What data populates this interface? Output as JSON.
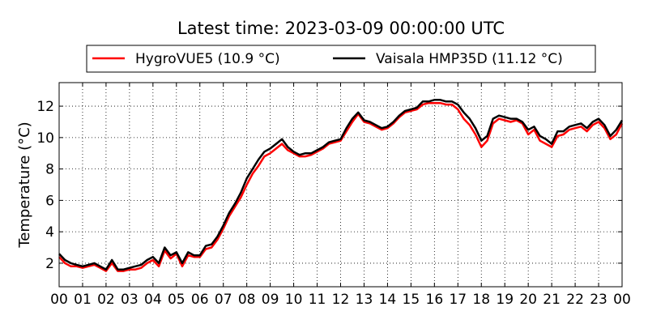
{
  "chart_data": {
    "type": "line",
    "title": "Latest time: 2023-03-09 00:00:00 UTC",
    "xlabel": "",
    "ylabel": "Temperature (°C)",
    "xlim": [
      0,
      24
    ],
    "ylim": [
      0.5,
      13.5
    ],
    "yticks": [
      2,
      4,
      6,
      8,
      10,
      12
    ],
    "xtick_labels": [
      "00",
      "01",
      "02",
      "03",
      "04",
      "05",
      "06",
      "07",
      "08",
      "09",
      "10",
      "11",
      "12",
      "13",
      "14",
      "15",
      "16",
      "17",
      "18",
      "19",
      "20",
      "21",
      "22",
      "23",
      "00"
    ],
    "grid": true,
    "legend": {
      "placement": "top-center, above plot",
      "columns": 2
    },
    "series": [
      {
        "name": "HygroVUE5 (10.9 °C)",
        "color": "#ff0000",
        "points": [
          [
            0.0,
            2.4
          ],
          [
            0.25,
            2.0
          ],
          [
            0.5,
            1.8
          ],
          [
            0.75,
            1.8
          ],
          [
            1.0,
            1.7
          ],
          [
            1.25,
            1.8
          ],
          [
            1.5,
            1.9
          ],
          [
            1.75,
            1.7
          ],
          [
            2.0,
            1.5
          ],
          [
            2.25,
            2.0
          ],
          [
            2.5,
            1.5
          ],
          [
            2.75,
            1.5
          ],
          [
            3.0,
            1.6
          ],
          [
            3.25,
            1.6
          ],
          [
            3.5,
            1.7
          ],
          [
            3.75,
            2.0
          ],
          [
            4.0,
            2.2
          ],
          [
            4.25,
            1.8
          ],
          [
            4.5,
            2.8
          ],
          [
            4.75,
            2.3
          ],
          [
            5.0,
            2.6
          ],
          [
            5.25,
            1.8
          ],
          [
            5.5,
            2.5
          ],
          [
            5.75,
            2.4
          ],
          [
            6.0,
            2.4
          ],
          [
            6.25,
            2.9
          ],
          [
            6.5,
            3.0
          ],
          [
            6.75,
            3.5
          ],
          [
            7.0,
            4.2
          ],
          [
            7.25,
            5.0
          ],
          [
            7.5,
            5.6
          ],
          [
            7.75,
            6.2
          ],
          [
            8.0,
            7.0
          ],
          [
            8.25,
            7.7
          ],
          [
            8.5,
            8.2
          ],
          [
            8.75,
            8.8
          ],
          [
            9.0,
            9.0
          ],
          [
            9.25,
            9.3
          ],
          [
            9.5,
            9.6
          ],
          [
            9.75,
            9.2
          ],
          [
            10.0,
            9.0
          ],
          [
            10.25,
            8.8
          ],
          [
            10.5,
            8.8
          ],
          [
            10.75,
            8.9
          ],
          [
            11.0,
            9.1
          ],
          [
            11.25,
            9.3
          ],
          [
            11.5,
            9.6
          ],
          [
            11.75,
            9.7
          ],
          [
            12.0,
            9.8
          ],
          [
            12.25,
            10.4
          ],
          [
            12.5,
            11.0
          ],
          [
            12.75,
            11.5
          ],
          [
            13.0,
            11.0
          ],
          [
            13.25,
            10.9
          ],
          [
            13.5,
            10.7
          ],
          [
            13.75,
            10.5
          ],
          [
            14.0,
            10.6
          ],
          [
            14.25,
            10.9
          ],
          [
            14.5,
            11.3
          ],
          [
            14.75,
            11.6
          ],
          [
            15.0,
            11.7
          ],
          [
            15.25,
            11.8
          ],
          [
            15.5,
            12.1
          ],
          [
            15.75,
            12.2
          ],
          [
            16.0,
            12.2
          ],
          [
            16.25,
            12.2
          ],
          [
            16.5,
            12.1
          ],
          [
            16.75,
            12.1
          ],
          [
            17.0,
            11.8
          ],
          [
            17.25,
            11.2
          ],
          [
            17.5,
            10.8
          ],
          [
            17.75,
            10.2
          ],
          [
            18.0,
            9.4
          ],
          [
            18.25,
            9.8
          ],
          [
            18.5,
            10.9
          ],
          [
            18.75,
            11.2
          ],
          [
            19.0,
            11.1
          ],
          [
            19.25,
            11.0
          ],
          [
            19.5,
            11.1
          ],
          [
            19.75,
            10.9
          ],
          [
            20.0,
            10.2
          ],
          [
            20.25,
            10.5
          ],
          [
            20.5,
            9.8
          ],
          [
            20.75,
            9.6
          ],
          [
            21.0,
            9.4
          ],
          [
            21.25,
            10.1
          ],
          [
            21.5,
            10.2
          ],
          [
            21.75,
            10.5
          ],
          [
            22.0,
            10.6
          ],
          [
            22.25,
            10.7
          ],
          [
            22.5,
            10.4
          ],
          [
            22.75,
            10.8
          ],
          [
            23.0,
            11.0
          ],
          [
            23.25,
            10.6
          ],
          [
            23.5,
            9.9
          ],
          [
            23.75,
            10.2
          ],
          [
            24.0,
            10.9
          ]
        ]
      },
      {
        "name": "Vaisala HMP35D (11.12 °C)",
        "color": "#000000",
        "points": [
          [
            0.0,
            2.6
          ],
          [
            0.25,
            2.2
          ],
          [
            0.5,
            2.0
          ],
          [
            0.75,
            1.9
          ],
          [
            1.0,
            1.8
          ],
          [
            1.25,
            1.9
          ],
          [
            1.5,
            2.0
          ],
          [
            1.75,
            1.8
          ],
          [
            2.0,
            1.6
          ],
          [
            2.25,
            2.2
          ],
          [
            2.5,
            1.6
          ],
          [
            2.75,
            1.6
          ],
          [
            3.0,
            1.7
          ],
          [
            3.25,
            1.8
          ],
          [
            3.5,
            1.9
          ],
          [
            3.75,
            2.2
          ],
          [
            4.0,
            2.4
          ],
          [
            4.25,
            2.0
          ],
          [
            4.5,
            3.0
          ],
          [
            4.75,
            2.5
          ],
          [
            5.0,
            2.7
          ],
          [
            5.25,
            2.0
          ],
          [
            5.5,
            2.7
          ],
          [
            5.75,
            2.5
          ],
          [
            6.0,
            2.5
          ],
          [
            6.25,
            3.1
          ],
          [
            6.5,
            3.2
          ],
          [
            6.75,
            3.7
          ],
          [
            7.0,
            4.4
          ],
          [
            7.25,
            5.2
          ],
          [
            7.5,
            5.8
          ],
          [
            7.75,
            6.5
          ],
          [
            8.0,
            7.4
          ],
          [
            8.25,
            8.0
          ],
          [
            8.5,
            8.6
          ],
          [
            8.75,
            9.1
          ],
          [
            9.0,
            9.3
          ],
          [
            9.25,
            9.6
          ],
          [
            9.5,
            9.9
          ],
          [
            9.75,
            9.4
          ],
          [
            10.0,
            9.1
          ],
          [
            10.25,
            8.9
          ],
          [
            10.5,
            9.0
          ],
          [
            10.75,
            9.0
          ],
          [
            11.0,
            9.2
          ],
          [
            11.25,
            9.4
          ],
          [
            11.5,
            9.7
          ],
          [
            11.75,
            9.8
          ],
          [
            12.0,
            9.9
          ],
          [
            12.25,
            10.6
          ],
          [
            12.5,
            11.2
          ],
          [
            12.75,
            11.6
          ],
          [
            13.0,
            11.1
          ],
          [
            13.25,
            11.0
          ],
          [
            13.5,
            10.8
          ],
          [
            13.75,
            10.6
          ],
          [
            14.0,
            10.7
          ],
          [
            14.25,
            11.0
          ],
          [
            14.5,
            11.4
          ],
          [
            14.75,
            11.7
          ],
          [
            15.0,
            11.8
          ],
          [
            15.25,
            11.9
          ],
          [
            15.5,
            12.3
          ],
          [
            15.75,
            12.3
          ],
          [
            16.0,
            12.4
          ],
          [
            16.25,
            12.4
          ],
          [
            16.5,
            12.3
          ],
          [
            16.75,
            12.3
          ],
          [
            17.0,
            12.1
          ],
          [
            17.25,
            11.6
          ],
          [
            17.5,
            11.2
          ],
          [
            17.75,
            10.6
          ],
          [
            18.0,
            9.8
          ],
          [
            18.25,
            10.1
          ],
          [
            18.5,
            11.2
          ],
          [
            18.75,
            11.4
          ],
          [
            19.0,
            11.3
          ],
          [
            19.25,
            11.2
          ],
          [
            19.5,
            11.2
          ],
          [
            19.75,
            11.0
          ],
          [
            20.0,
            10.5
          ],
          [
            20.25,
            10.7
          ],
          [
            20.5,
            10.1
          ],
          [
            20.75,
            9.9
          ],
          [
            21.0,
            9.6
          ],
          [
            21.25,
            10.4
          ],
          [
            21.5,
            10.4
          ],
          [
            21.75,
            10.7
          ],
          [
            22.0,
            10.8
          ],
          [
            22.25,
            10.9
          ],
          [
            22.5,
            10.6
          ],
          [
            22.75,
            11.0
          ],
          [
            23.0,
            11.2
          ],
          [
            23.25,
            10.8
          ],
          [
            23.5,
            10.1
          ],
          [
            23.75,
            10.5
          ],
          [
            24.0,
            11.1
          ]
        ]
      }
    ]
  }
}
